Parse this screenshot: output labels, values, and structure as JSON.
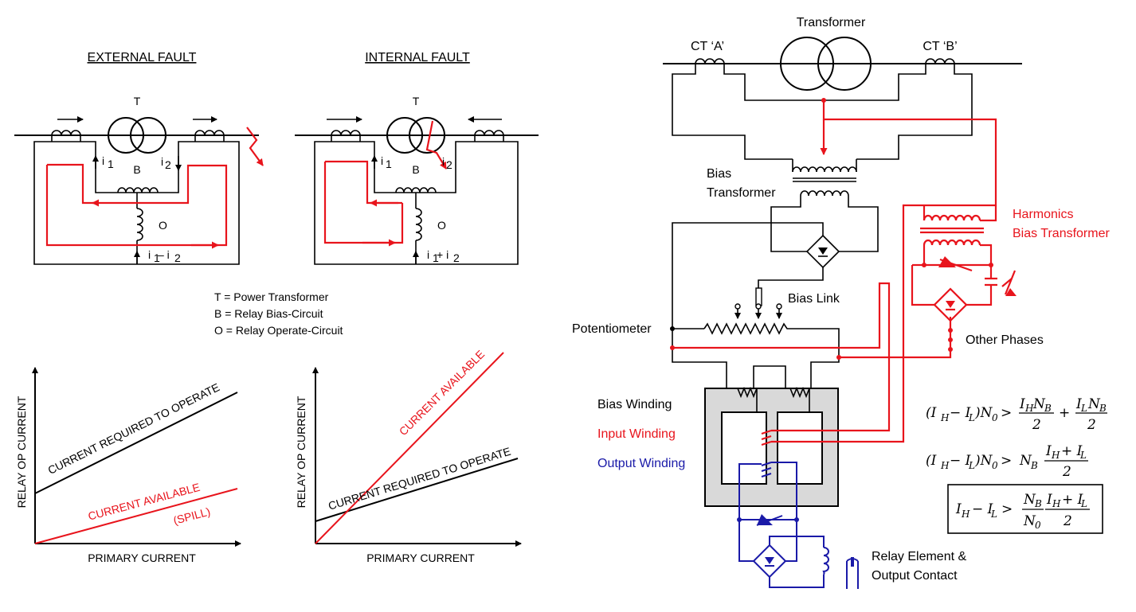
{
  "left": {
    "external_title": "EXTERNAL FAULT",
    "internal_title": "INTERNAL FAULT",
    "label_T": "T",
    "label_B": "B",
    "label_O": "O",
    "i1": "i",
    "i2": "i",
    "sub1": "1",
    "sub2": "2",
    "ext_operate": "i",
    "ext_operate_mid": " – i",
    "int_operate_mid": " + i",
    "legend": [
      "T = Power Transformer",
      "B = Relay Bias-Circuit",
      "O = Relay Operate-Circuit"
    ]
  },
  "charts": {
    "ylabel": "RELAY OP CURRENT",
    "xlabel": "PRIMARY CURRENT",
    "required": "CURRENT REQUIRED TO OPERATE",
    "available": "CURRENT AVAILABLE",
    "spill": "(SPILL)"
  },
  "right": {
    "transformer": "Transformer",
    "ct_a": "CT ‘A’",
    "ct_b": "CT ‘B’",
    "bias_transformer_1": "Bias",
    "bias_transformer_2": "Transformer",
    "harmonics_1": "Harmonics",
    "harmonics_2": "Bias Transformer",
    "bias_link": "Bias Link",
    "potentiometer": "Potentiometer",
    "other_phases": "Other Phases",
    "bias_winding": "Bias Winding",
    "input_winding": "Input Winding",
    "output_winding": "Output Winding",
    "relay_1": "Relay Element &",
    "relay_2": "Output Contact"
  },
  "colors": {
    "red": "#e8141c",
    "blue": "#1a1aa8",
    "core": "#d9d9d9"
  }
}
